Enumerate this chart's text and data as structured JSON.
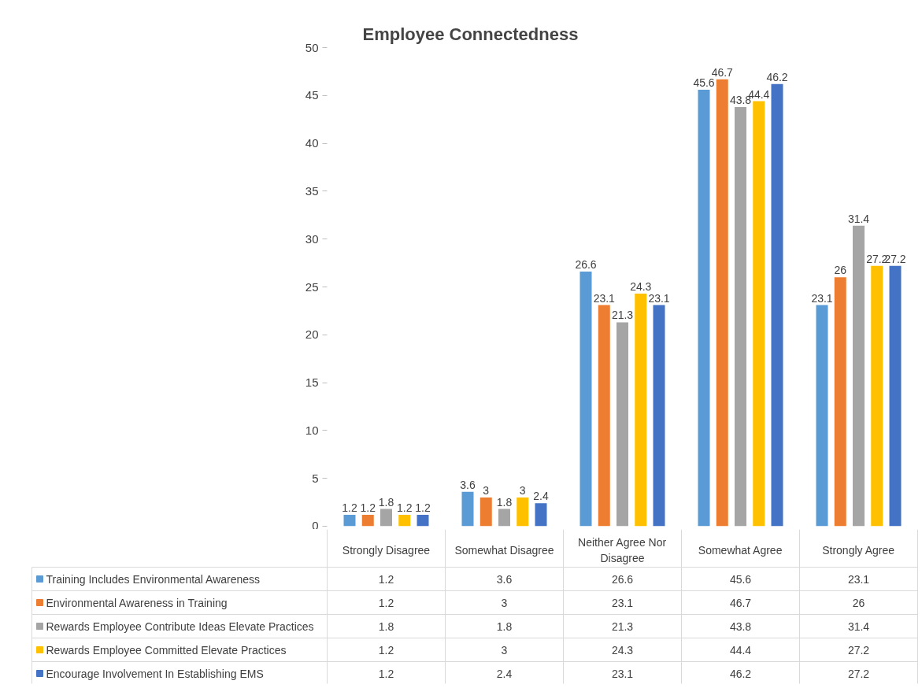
{
  "chart_data": {
    "type": "bar",
    "title": "Employee Connectedness",
    "categories": [
      "Strongly Disagree",
      "Somewhat Disagree",
      "Neither Agree Nor Disagree",
      "Somewhat Agree",
      "Strongly Agree"
    ],
    "series": [
      {
        "name": "Training Includes Environmental Awareness",
        "color": "#5b9bd5",
        "values": [
          1.2,
          3.6,
          26.6,
          45.6,
          23.1
        ],
        "value_labels": [
          "1.2",
          "3.6",
          "26.6",
          "45.6",
          "23.1"
        ]
      },
      {
        "name": "Environmental Awareness in Training",
        "color": "#ed7d31",
        "values": [
          1.2,
          3,
          23.1,
          46.7,
          26
        ],
        "value_labels": [
          "1.2",
          "3",
          "23.1",
          "46.7",
          "26"
        ]
      },
      {
        "name": "Rewards Employee Contribute Ideas Elevate Practices",
        "color": "#a5a5a5",
        "values": [
          1.8,
          1.8,
          21.3,
          43.8,
          31.4
        ],
        "value_labels": [
          "1.8",
          "1.8",
          "21.3",
          "43.8",
          "31.4"
        ]
      },
      {
        "name": "Rewards Employee Committed Elevate Practices",
        "color": "#ffc000",
        "values": [
          1.2,
          3,
          24.3,
          44.4,
          27.2
        ],
        "value_labels": [
          "1.2",
          "3",
          "24.3",
          "44.4",
          "27.2"
        ]
      },
      {
        "name": "Encourage Involvement In Establishing EMS",
        "color": "#4472c4",
        "values": [
          1.2,
          2.4,
          23.1,
          46.2,
          27.2
        ],
        "value_labels": [
          "1.2",
          "2.4",
          "23.1",
          "46.2",
          "27.2"
        ]
      }
    ],
    "ylim": [
      0,
      50
    ],
    "yticks": [
      0,
      5,
      10,
      15,
      20,
      25,
      30,
      35,
      40,
      45,
      50
    ],
    "grid": false,
    "data_labels": true,
    "legend": "bottom"
  }
}
